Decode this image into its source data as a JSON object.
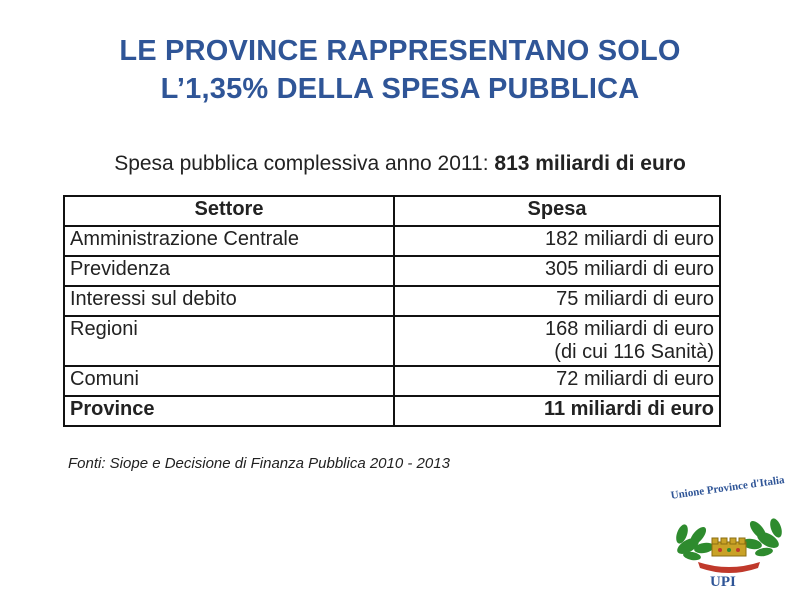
{
  "title": {
    "line1": "LE PROVINCE RAPPRESENTANO SOLO",
    "line2": "L’1,35%  DELLA SPESA PUBBLICA"
  },
  "subtitle": {
    "prefix": "Spesa pubblica complessiva anno 2011: ",
    "amount": "813 miliardi di euro"
  },
  "table": {
    "headers": [
      "Settore",
      "Spesa"
    ],
    "rows": [
      {
        "settore": "Amministrazione Centrale",
        "spesa": "182 miliardi di euro",
        "note": ""
      },
      {
        "settore": "Previdenza",
        "spesa": "305 miliardi di euro",
        "note": ""
      },
      {
        "settore": "Interessi sul debito",
        "spesa": "75 miliardi di euro",
        "note": ""
      },
      {
        "settore": "Regioni",
        "spesa": "168 miliardi di euro",
        "note": "(di cui 116 Sanità)"
      },
      {
        "settore": "Comuni",
        "spesa": "72 miliardi di euro",
        "note": ""
      },
      {
        "settore": "Province",
        "spesa": "11 miliardi di euro",
        "note": ""
      }
    ]
  },
  "source": "Fonti: Siope e Decisione di Finanza Pubblica 2010 - 2013",
  "logo": {
    "name": "Unione Province d'Italia",
    "abbr": "UPI",
    "colors": {
      "text": "#2f5597",
      "leaves": "#2e8b2e",
      "crown": "#c9a227",
      "ribbon": "#c0392b"
    }
  }
}
